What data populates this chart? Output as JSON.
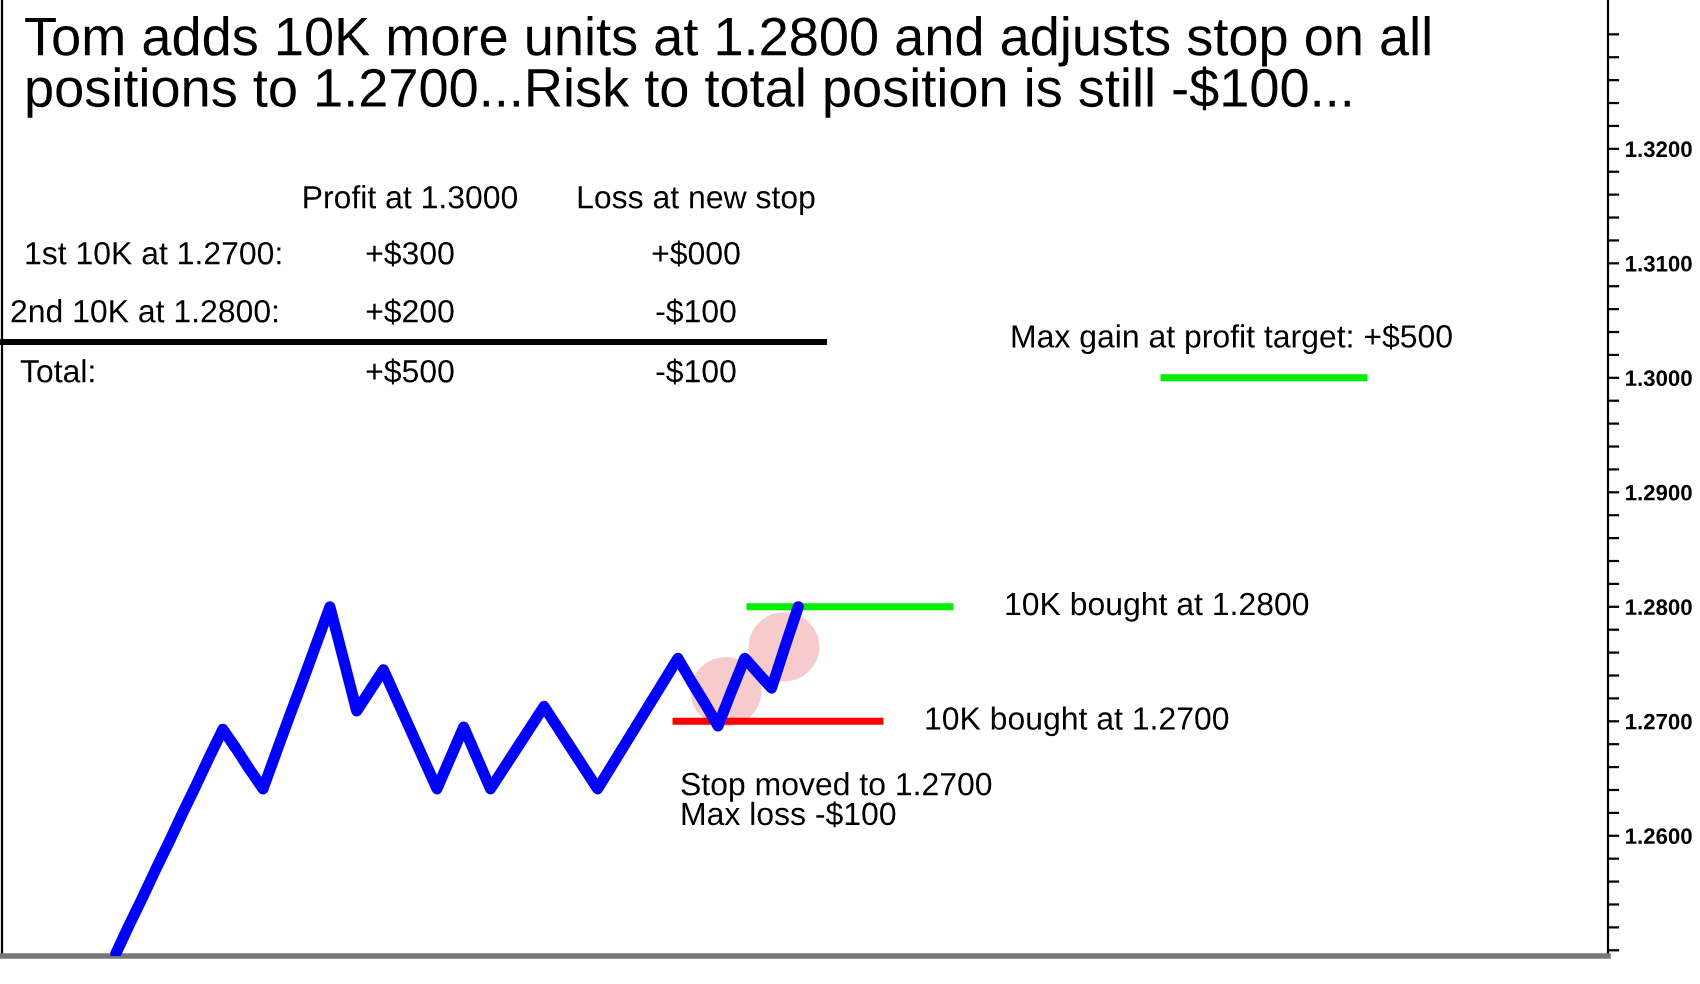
{
  "chart_data": {
    "type": "line",
    "title": "Tom adds 10K more units at 1.2800 and adjusts stop on all\npositions to 1.2700...Risk to total position is still -$100...",
    "categories": [
      null,
      null,
      null,
      null,
      null,
      null,
      null,
      null,
      null,
      null,
      null,
      null,
      null,
      null,
      null,
      null,
      null,
      null,
      null,
      null,
      null,
      null,
      null,
      null,
      null,
      null,
      null,
      null,
      null,
      null,
      null,
      null,
      null,
      null,
      null,
      null,
      null,
      null,
      null,
      null,
      null,
      null,
      null,
      null,
      null,
      null,
      null,
      null,
      null,
      null,
      null,
      null,
      null,
      null,
      null,
      null,
      null,
      null,
      null,
      null,
      null,
      null,
      null,
      null,
      null,
      null,
      null,
      null,
      null,
      null,
      null,
      null,
      null,
      null,
      null,
      null,
      null,
      null,
      null,
      null,
      null,
      null,
      null,
      null,
      null,
      null,
      null,
      null,
      null,
      null,
      null,
      null,
      null,
      null,
      null,
      null,
      null,
      null,
      null,
      null,
      null,
      null,
      null,
      null,
      null,
      null,
      null,
      null,
      null,
      null,
      null,
      null,
      null,
      null,
      null,
      null,
      null,
      null,
      null,
      null
    ],
    "series": [
      {
        "color": "#0000ff",
        "values": [
          null,
          null,
          null,
          null,
          null,
          null,
          null,
          null,
          1.2497,
          1.2522,
          1.2546,
          1.2571,
          1.2595,
          1.262,
          1.2644,
          1.2669,
          1.2693,
          1.2676,
          1.2658,
          1.2641,
          1.2673,
          1.2705,
          1.2736,
          1.2768,
          1.28,
          1.2755,
          1.2709,
          1.2727,
          1.2745,
          1.2719,
          1.2693,
          1.2667,
          1.2641,
          1.2668,
          1.2695,
          1.2668,
          1.2641,
          1.2659,
          1.2677,
          1.2695,
          1.2713,
          1.2695,
          1.2677,
          1.2659,
          1.2641,
          1.266,
          1.2679,
          1.2698,
          1.2717,
          1.2736,
          1.2755,
          1.2735,
          1.2716,
          1.2696,
          1.2726,
          1.2755,
          1.2742,
          1.2729,
          1.2765,
          1.28,
          null,
          null,
          null,
          null,
          null,
          null,
          null,
          null,
          null,
          null,
          null,
          null,
          null,
          null,
          null,
          null,
          null,
          null,
          null,
          null,
          null,
          null,
          null,
          null,
          null,
          null,
          null,
          null,
          null,
          null,
          null,
          null,
          null,
          null,
          null,
          null,
          null,
          null,
          null,
          null,
          null,
          null,
          null,
          null,
          null,
          null,
          null,
          null,
          null,
          null,
          null,
          null,
          null,
          null,
          null,
          null,
          null,
          null,
          null,
          null
        ]
      }
    ],
    "ref_lines": [
      {
        "axis": "y",
        "value": 1.28,
        "label": "10K bought at 1.2800",
        "color": "#00ee00"
      },
      {
        "axis": "y",
        "value": 1.27,
        "label": "10K bought at 1.2700",
        "color": "#ff0000"
      },
      {
        "axis": "y",
        "value": 1.3,
        "label": "Max gain at profit target: +$500",
        "color": "#00ee00"
      }
    ],
    "ylim": [
      1.2495,
      1.333
    ],
    "yticks": [
      {
        "value": 1.25,
        "label": null
      },
      {
        "value": 1.252,
        "label": null
      },
      {
        "value": 1.254,
        "label": null
      },
      {
        "value": 1.256,
        "label": null
      },
      {
        "value": 1.258,
        "label": null
      },
      {
        "value": 1.26,
        "label": "1.2600"
      },
      {
        "value": 1.262,
        "label": null
      },
      {
        "value": 1.264,
        "label": null
      },
      {
        "value": 1.266,
        "label": null
      },
      {
        "value": 1.268,
        "label": null
      },
      {
        "value": 1.27,
        "label": "1.2700"
      },
      {
        "value": 1.272,
        "label": null
      },
      {
        "value": 1.274,
        "label": null
      },
      {
        "value": 1.276,
        "label": null
      },
      {
        "value": 1.278,
        "label": null
      },
      {
        "value": 1.28,
        "label": "1.2800"
      },
      {
        "value": 1.282,
        "label": null
      },
      {
        "value": 1.284,
        "label": null
      },
      {
        "value": 1.286,
        "label": null
      },
      {
        "value": 1.288,
        "label": null
      },
      {
        "value": 1.29,
        "label": "1.2900"
      },
      {
        "value": 1.292,
        "label": null
      },
      {
        "value": 1.294,
        "label": null
      },
      {
        "value": 1.296,
        "label": null
      },
      {
        "value": 1.298,
        "label": null
      },
      {
        "value": 1.3,
        "label": "1.3000"
      },
      {
        "value": 1.302,
        "label": null
      },
      {
        "value": 1.304,
        "label": null
      },
      {
        "value": 1.306,
        "label": null
      },
      {
        "value": 1.308,
        "label": null
      },
      {
        "value": 1.31,
        "label": "1.3100"
      },
      {
        "value": 1.312,
        "label": null
      },
      {
        "value": 1.314,
        "label": null
      },
      {
        "value": 1.316,
        "label": null
      },
      {
        "value": 1.318,
        "label": null
      },
      {
        "value": 1.32,
        "label": "1.3200"
      },
      {
        "value": 1.322,
        "label": null
      },
      {
        "value": 1.324,
        "label": null
      },
      {
        "value": 1.326,
        "label": null
      },
      {
        "value": 1.328,
        "label": null
      },
      {
        "value": 1.33,
        "label": null
      }
    ],
    "tick_labels": "y",
    "annotations": [
      "Profit at 1.3000",
      "Loss at new stop",
      "1st 10K at 1.2700:",
      "+$300",
      "+$000",
      "2nd 10K at 1.2800:",
      "+$200",
      "-$100",
      "Total:",
      "+$500",
      "-$100",
      "Stop moved to 1.2700\nMax loss -$100"
    ]
  }
}
